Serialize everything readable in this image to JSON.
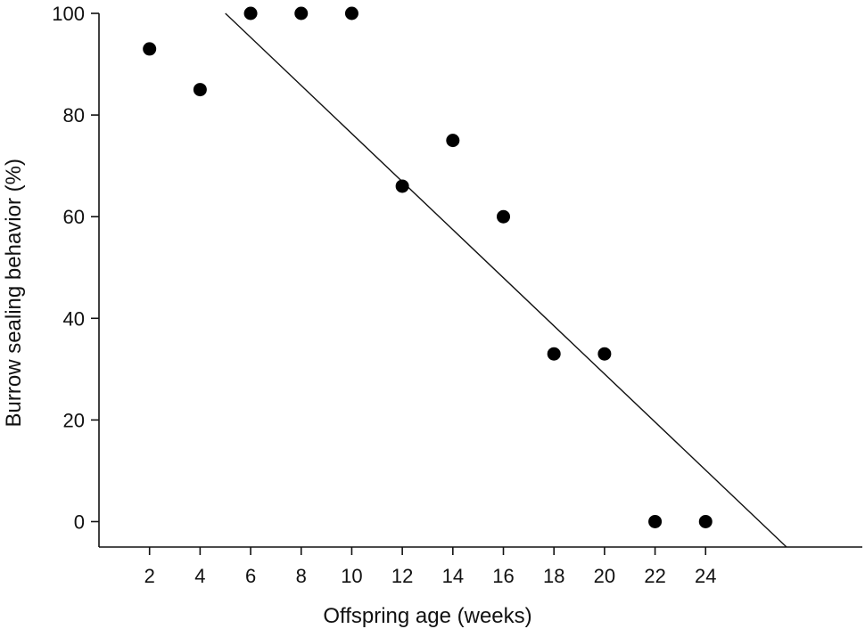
{
  "chart_data": {
    "type": "scatter",
    "xlabel": "Offspring age (weeks)",
    "ylabel": "Burrow sealing behavior (%)",
    "x_ticks": [
      2,
      4,
      6,
      8,
      10,
      12,
      14,
      16,
      18,
      20,
      22,
      24
    ],
    "y_ticks": [
      0,
      20,
      40,
      60,
      80,
      100
    ],
    "xlim": [
      0,
      30.2
    ],
    "ylim": [
      -5,
      100
    ],
    "grid": false,
    "legend": "none",
    "series": [
      {
        "x": [
          2,
          4,
          6,
          8,
          10,
          12,
          14,
          16,
          18,
          20,
          22,
          24
        ],
        "y": [
          93,
          85,
          100,
          100,
          100,
          66,
          75,
          60,
          33,
          33,
          0,
          0
        ]
      }
    ],
    "trend_line": {
      "x": [
        5,
        27.2
      ],
      "y": [
        100,
        -5
      ]
    },
    "colors": {
      "points": "#000000",
      "line": "#111111",
      "axes": "#111111"
    }
  }
}
